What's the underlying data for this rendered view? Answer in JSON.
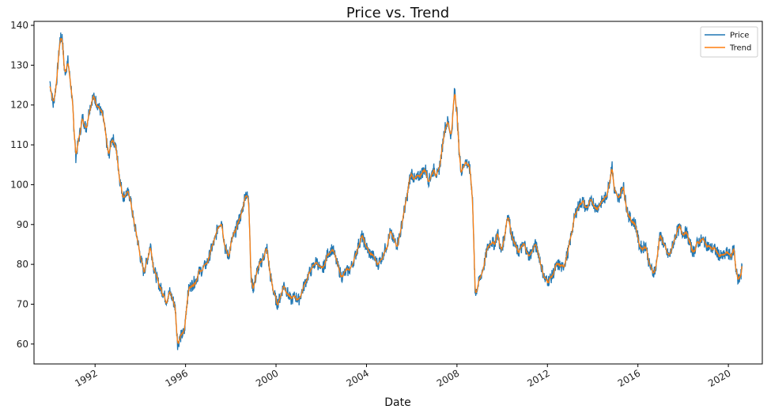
{
  "chart_data": {
    "type": "line",
    "title": "Price vs. Trend",
    "xlabel": "Date",
    "ylabel": "",
    "x_ticks": [
      "1992",
      "1996",
      "2000",
      "2004",
      "2008",
      "2012",
      "2016",
      "2020"
    ],
    "y_ticks": [
      60,
      70,
      80,
      90,
      100,
      110,
      120,
      130,
      140
    ],
    "xlim": [
      1989.3,
      2021.5
    ],
    "ylim": [
      55,
      141
    ],
    "grid": false,
    "legend_position": "top-right",
    "series": [
      {
        "name": "Price",
        "color": "#1f77b4",
        "points": [
          [
            1990.0,
            126
          ],
          [
            1990.15,
            120
          ],
          [
            1990.3,
            126
          ],
          [
            1990.45,
            136.5
          ],
          [
            1990.55,
            137
          ],
          [
            1990.65,
            128
          ],
          [
            1990.8,
            131
          ],
          [
            1990.95,
            124
          ],
          [
            1991.05,
            116
          ],
          [
            1991.15,
            107
          ],
          [
            1991.3,
            112
          ],
          [
            1991.45,
            117
          ],
          [
            1991.6,
            114
          ],
          [
            1991.75,
            119
          ],
          [
            1991.9,
            122
          ],
          [
            1992.05,
            121
          ],
          [
            1992.2,
            119
          ],
          [
            1992.35,
            117
          ],
          [
            1992.5,
            111
          ],
          [
            1992.6,
            107
          ],
          [
            1992.75,
            112
          ],
          [
            1992.9,
            110
          ],
          [
            1993.0,
            106
          ],
          [
            1993.1,
            101
          ],
          [
            1993.25,
            97
          ],
          [
            1993.4,
            98
          ],
          [
            1993.55,
            97
          ],
          [
            1993.7,
            91
          ],
          [
            1993.85,
            87
          ],
          [
            1994.0,
            82
          ],
          [
            1994.15,
            78
          ],
          [
            1994.3,
            81
          ],
          [
            1994.45,
            85
          ],
          [
            1994.6,
            79
          ],
          [
            1994.75,
            76
          ],
          [
            1994.9,
            74
          ],
          [
            1995.0,
            73
          ],
          [
            1995.15,
            71
          ],
          [
            1995.3,
            73
          ],
          [
            1995.45,
            71
          ],
          [
            1995.55,
            69
          ],
          [
            1995.65,
            60
          ],
          [
            1995.8,
            62
          ],
          [
            1995.95,
            63
          ],
          [
            1996.05,
            70
          ],
          [
            1996.15,
            74
          ],
          [
            1996.3,
            75
          ],
          [
            1996.45,
            76
          ],
          [
            1996.6,
            78
          ],
          [
            1996.8,
            79
          ],
          [
            1997.0,
            81
          ],
          [
            1997.15,
            84
          ],
          [
            1997.3,
            86
          ],
          [
            1997.45,
            90
          ],
          [
            1997.6,
            91
          ],
          [
            1997.75,
            84
          ],
          [
            1997.9,
            82
          ],
          [
            1998.05,
            86
          ],
          [
            1998.2,
            88
          ],
          [
            1998.35,
            91
          ],
          [
            1998.5,
            93
          ],
          [
            1998.65,
            98
          ],
          [
            1998.8,
            96
          ],
          [
            1998.9,
            76
          ],
          [
            1999.0,
            74
          ],
          [
            1999.15,
            78
          ],
          [
            1999.3,
            80
          ],
          [
            1999.45,
            82
          ],
          [
            1999.6,
            84
          ],
          [
            1999.75,
            77
          ],
          [
            1999.9,
            73
          ],
          [
            2000.05,
            70
          ],
          [
            2000.2,
            72
          ],
          [
            2000.35,
            75
          ],
          [
            2000.5,
            73
          ],
          [
            2000.65,
            71
          ],
          [
            2000.85,
            72
          ],
          [
            2001.0,
            71
          ],
          [
            2001.2,
            74
          ],
          [
            2001.4,
            77
          ],
          [
            2001.6,
            79
          ],
          [
            2001.8,
            81
          ],
          [
            2002.0,
            78
          ],
          [
            2002.15,
            80
          ],
          [
            2002.3,
            83
          ],
          [
            2002.5,
            84
          ],
          [
            2002.7,
            80
          ],
          [
            2002.9,
            77
          ],
          [
            2003.1,
            78
          ],
          [
            2003.3,
            79
          ],
          [
            2003.5,
            82
          ],
          [
            2003.65,
            85
          ],
          [
            2003.8,
            87
          ],
          [
            2003.95,
            85
          ],
          [
            2004.1,
            83
          ],
          [
            2004.3,
            82
          ],
          [
            2004.5,
            80
          ],
          [
            2004.7,
            82
          ],
          [
            2004.9,
            85
          ],
          [
            2005.05,
            88
          ],
          [
            2005.2,
            86
          ],
          [
            2005.35,
            85
          ],
          [
            2005.5,
            88
          ],
          [
            2005.65,
            93
          ],
          [
            2005.8,
            97
          ],
          [
            2005.9,
            101
          ],
          [
            2006.0,
            103
          ],
          [
            2006.15,
            101
          ],
          [
            2006.3,
            102
          ],
          [
            2006.45,
            103
          ],
          [
            2006.6,
            104
          ],
          [
            2006.75,
            101
          ],
          [
            2006.9,
            103
          ],
          [
            2007.0,
            104
          ],
          [
            2007.15,
            102
          ],
          [
            2007.3,
            107
          ],
          [
            2007.45,
            114
          ],
          [
            2007.6,
            116
          ],
          [
            2007.75,
            112
          ],
          [
            2007.9,
            124
          ],
          [
            2008.0,
            118
          ],
          [
            2008.1,
            108
          ],
          [
            2008.2,
            103
          ],
          [
            2008.35,
            106
          ],
          [
            2008.5,
            105
          ],
          [
            2008.6,
            103
          ],
          [
            2008.7,
            95
          ],
          [
            2008.8,
            73
          ],
          [
            2008.9,
            74
          ],
          [
            2009.05,
            77
          ],
          [
            2009.2,
            80
          ],
          [
            2009.35,
            84
          ],
          [
            2009.5,
            86
          ],
          [
            2009.65,
            85
          ],
          [
            2009.8,
            88
          ],
          [
            2009.95,
            83
          ],
          [
            2010.1,
            87
          ],
          [
            2010.25,
            93
          ],
          [
            2010.4,
            88
          ],
          [
            2010.55,
            85
          ],
          [
            2010.7,
            83
          ],
          [
            2010.85,
            84
          ],
          [
            2011.0,
            85
          ],
          [
            2011.15,
            82
          ],
          [
            2011.3,
            83
          ],
          [
            2011.45,
            85
          ],
          [
            2011.6,
            83
          ],
          [
            2011.75,
            79
          ],
          [
            2011.9,
            76
          ],
          [
            2012.05,
            76
          ],
          [
            2012.2,
            77
          ],
          [
            2012.35,
            79
          ],
          [
            2012.5,
            80
          ],
          [
            2012.65,
            79
          ],
          [
            2012.8,
            81
          ],
          [
            2012.95,
            84
          ],
          [
            2013.1,
            89
          ],
          [
            2013.25,
            93
          ],
          [
            2013.4,
            95
          ],
          [
            2013.55,
            96
          ],
          [
            2013.7,
            94
          ],
          [
            2013.85,
            95
          ],
          [
            2014.0,
            96
          ],
          [
            2014.15,
            94
          ],
          [
            2014.3,
            95
          ],
          [
            2014.45,
            96
          ],
          [
            2014.6,
            97
          ],
          [
            2014.75,
            101
          ],
          [
            2014.85,
            105
          ],
          [
            2014.95,
            99
          ],
          [
            2015.1,
            96
          ],
          [
            2015.25,
            98
          ],
          [
            2015.35,
            100
          ],
          [
            2015.45,
            96
          ],
          [
            2015.6,
            92
          ],
          [
            2015.75,
            91
          ],
          [
            2015.9,
            90
          ],
          [
            2016.05,
            85
          ],
          [
            2016.2,
            84
          ],
          [
            2016.35,
            85
          ],
          [
            2016.5,
            80
          ],
          [
            2016.65,
            78
          ],
          [
            2016.8,
            79
          ],
          [
            2016.95,
            87
          ],
          [
            2017.1,
            86
          ],
          [
            2017.25,
            83
          ],
          [
            2017.4,
            82
          ],
          [
            2017.55,
            85
          ],
          [
            2017.7,
            88
          ],
          [
            2017.85,
            89
          ],
          [
            2018.0,
            88
          ],
          [
            2018.15,
            88
          ],
          [
            2018.3,
            85
          ],
          [
            2018.45,
            83
          ],
          [
            2018.6,
            85
          ],
          [
            2018.75,
            86
          ],
          [
            2018.9,
            86
          ],
          [
            2019.05,
            85
          ],
          [
            2019.2,
            84
          ],
          [
            2019.35,
            84
          ],
          [
            2019.5,
            83
          ],
          [
            2019.65,
            82
          ],
          [
            2019.8,
            82
          ],
          [
            2019.95,
            83
          ],
          [
            2020.1,
            82
          ],
          [
            2020.25,
            84
          ],
          [
            2020.35,
            78
          ],
          [
            2020.45,
            76
          ],
          [
            2020.55,
            77
          ],
          [
            2020.6,
            80
          ]
        ]
      },
      {
        "name": "Trend",
        "color": "#ff7f0e"
      }
    ]
  }
}
